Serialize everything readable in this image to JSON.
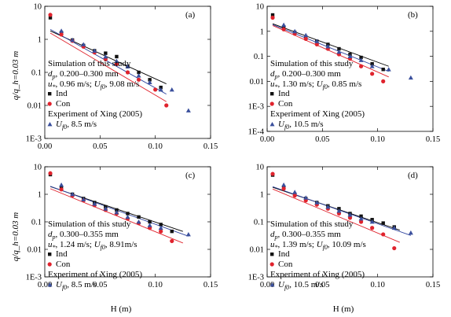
{
  "figure": {
    "ylabel": "q/q_h=0.03 m",
    "xlabel": "H (m)"
  },
  "colors": {
    "ind": "#111111",
    "con": "#e0232d",
    "xing": "#3a4f9c",
    "fit_ind": "#000000",
    "fit_con": "#e0232d",
    "fit_xing": "#2a3f9c"
  },
  "chart_data": [
    {
      "type": "scatter",
      "panel": "(a)",
      "yscale": "log",
      "xlim": [
        0,
        0.15
      ],
      "ylim": [
        0.001,
        10
      ],
      "x_ticks": [
        "0.00",
        "0.05",
        "0.10",
        "0.15"
      ],
      "y_ticks": [
        "10",
        "1",
        "0.1",
        "0.01",
        "1E-3"
      ],
      "annotation": {
        "title": "Simulation of this study",
        "dp": "d_p, 0.200–0.300 mm",
        "params": "u_*, 0.96 m/s; U_f0, 9.08 m/s",
        "legend_ind": "Ind",
        "legend_con": "Con",
        "exp_title": "Experiment of Xing (2005)",
        "exp_params": "U_f0, 8.5 m/s"
      },
      "series": [
        {
          "name": "Ind",
          "x": [
            0.005,
            0.015,
            0.025,
            0.035,
            0.045,
            0.055,
            0.065,
            0.075,
            0.085,
            0.095,
            0.105
          ],
          "y": [
            4.5,
            1.6,
            0.95,
            0.65,
            0.45,
            0.38,
            0.3,
            0.15,
            0.1,
            0.06,
            0.035
          ]
        },
        {
          "name": "Con",
          "x": [
            0.005,
            0.015,
            0.025,
            0.035,
            0.045,
            0.055,
            0.065,
            0.075,
            0.085,
            0.1,
            0.11
          ],
          "y": [
            5.5,
            1.4,
            0.9,
            0.6,
            0.4,
            0.25,
            0.18,
            0.1,
            0.06,
            0.03,
            0.01
          ]
        },
        {
          "name": "Xing",
          "x": [
            0.015,
            0.025,
            0.035,
            0.045,
            0.055,
            0.065,
            0.075,
            0.085,
            0.095,
            0.105,
            0.115,
            0.13
          ],
          "y": [
            1.8,
            0.95,
            0.7,
            0.45,
            0.3,
            0.22,
            0.15,
            0.08,
            0.05,
            0.03,
            0.03,
            0.007
          ]
        }
      ],
      "fits": [
        {
          "series": "Ind",
          "x": [
            0.005,
            0.11
          ],
          "y": [
            1.8,
            0.045
          ]
        },
        {
          "series": "Con",
          "x": [
            0.005,
            0.11
          ],
          "y": [
            1.55,
            0.013
          ]
        },
        {
          "series": "Xing",
          "x": [
            0.005,
            0.11
          ],
          "y": [
            2.0,
            0.022
          ]
        }
      ]
    },
    {
      "type": "scatter",
      "panel": "(b)",
      "yscale": "log",
      "xlim": [
        0,
        0.15
      ],
      "ylim": [
        0.0001,
        10
      ],
      "x_ticks": [
        "0.00",
        "0.05",
        "0.10",
        "0.15"
      ],
      "y_ticks": [
        "10",
        "1",
        "0.1",
        "0.01",
        "1E-3",
        "1E-4"
      ],
      "annotation": {
        "title": "Simulation of this study",
        "dp": "d_p, 0.200–0.300 mm",
        "params": "u_*, 1.30 m/s; U_f0, 0.85 m/s",
        "legend_ind": "Ind",
        "legend_con": "Con",
        "exp_title": "Experiment of Xing (2005)",
        "exp_params": "U_f0, 10.5 m/s"
      },
      "series": [
        {
          "name": "Ind",
          "x": [
            0.005,
            0.015,
            0.025,
            0.035,
            0.045,
            0.055,
            0.065,
            0.075,
            0.085,
            0.095,
            0.105
          ],
          "y": [
            4.5,
            1.5,
            0.9,
            0.6,
            0.4,
            0.3,
            0.2,
            0.12,
            0.09,
            0.05,
            0.03
          ]
        },
        {
          "name": "Con",
          "x": [
            0.005,
            0.015,
            0.025,
            0.035,
            0.045,
            0.055,
            0.065,
            0.075,
            0.085,
            0.095,
            0.105
          ],
          "y": [
            3.5,
            1.2,
            0.8,
            0.5,
            0.3,
            0.2,
            0.12,
            0.08,
            0.04,
            0.02,
            0.01
          ]
        },
        {
          "name": "Xing",
          "x": [
            0.015,
            0.025,
            0.035,
            0.045,
            0.055,
            0.065,
            0.075,
            0.085,
            0.095,
            0.11,
            0.13
          ],
          "y": [
            1.8,
            1.0,
            0.7,
            0.4,
            0.25,
            0.15,
            0.1,
            0.07,
            0.04,
            0.03,
            0.014
          ]
        }
      ],
      "fits": [
        {
          "series": "Ind",
          "x": [
            0.005,
            0.11
          ],
          "y": [
            2.0,
            0.04
          ]
        },
        {
          "series": "Con",
          "x": [
            0.005,
            0.11
          ],
          "y": [
            1.7,
            0.015
          ]
        },
        {
          "series": "Xing",
          "x": [
            0.005,
            0.11
          ],
          "y": [
            1.85,
            0.025
          ]
        }
      ]
    },
    {
      "type": "scatter",
      "panel": "(c)",
      "yscale": "log",
      "xlim": [
        0,
        0.15
      ],
      "ylim": [
        0.001,
        10
      ],
      "x_ticks": [
        "0.00",
        "0.05",
        "0.10",
        "0.15"
      ],
      "y_ticks": [
        "10",
        "1",
        "0.1",
        "0.01",
        "1E-3"
      ],
      "annotation": {
        "title": "Simulation of this study",
        "dp": "d_p, 0.300–0.355 mm",
        "params": "u_*, 1.24 m/s; U_f0, 8.91m/s",
        "legend_ind": "Ind",
        "legend_con": "Con",
        "exp_title": "Experiment of Xing (2005)",
        "exp_params": "U_f0, 8.5 m/s"
      },
      "series": [
        {
          "name": "Ind",
          "x": [
            0.005,
            0.015,
            0.025,
            0.035,
            0.045,
            0.055,
            0.065,
            0.075,
            0.085,
            0.095,
            0.105,
            0.115
          ],
          "y": [
            5.2,
            1.7,
            1.0,
            0.7,
            0.5,
            0.35,
            0.27,
            0.2,
            0.15,
            0.1,
            0.08,
            0.045
          ]
        },
        {
          "name": "Con",
          "x": [
            0.005,
            0.015,
            0.025,
            0.035,
            0.045,
            0.055,
            0.065,
            0.075,
            0.085,
            0.095,
            0.105,
            0.115
          ],
          "y": [
            5.8,
            1.5,
            0.9,
            0.6,
            0.4,
            0.27,
            0.2,
            0.13,
            0.09,
            0.06,
            0.045,
            0.02
          ]
        },
        {
          "name": "Xing",
          "x": [
            0.015,
            0.025,
            0.035,
            0.045,
            0.055,
            0.065,
            0.075,
            0.085,
            0.095,
            0.105,
            0.13
          ],
          "y": [
            2.2,
            1.0,
            0.65,
            0.45,
            0.3,
            0.22,
            0.15,
            0.1,
            0.075,
            0.06,
            0.035
          ]
        }
      ],
      "fits": [
        {
          "series": "Ind",
          "x": [
            0.005,
            0.125
          ],
          "y": [
            1.9,
            0.045
          ]
        },
        {
          "series": "Con",
          "x": [
            0.005,
            0.125
          ],
          "y": [
            1.6,
            0.017
          ]
        },
        {
          "series": "Xing",
          "x": [
            0.005,
            0.13
          ],
          "y": [
            1.95,
            0.03
          ]
        }
      ]
    },
    {
      "type": "scatter",
      "panel": "(d)",
      "yscale": "log",
      "xlim": [
        0,
        0.15
      ],
      "ylim": [
        0.001,
        10
      ],
      "x_ticks": [
        "0.00",
        "0.05",
        "0.10",
        "0.15"
      ],
      "y_ticks": [
        "10",
        "1",
        "0.1",
        "0.01",
        "1E-3"
      ],
      "annotation": {
        "title": "Simulation of this study",
        "dp": "d_p, 0.300–0.355 mm",
        "params": "u_*, 1.39 m/s; U_f0, 10.09 m/s",
        "legend_ind": "Ind",
        "legend_con": "Con",
        "exp_title": "Experiment of Xing (2005)",
        "exp_params": "U_f0, 10.5 m/s"
      },
      "series": [
        {
          "name": "Ind",
          "x": [
            0.005,
            0.015,
            0.025,
            0.035,
            0.045,
            0.055,
            0.065,
            0.075,
            0.085,
            0.095,
            0.105,
            0.115
          ],
          "y": [
            5.0,
            1.8,
            1.0,
            0.7,
            0.5,
            0.38,
            0.3,
            0.2,
            0.16,
            0.12,
            0.09,
            0.065
          ]
        },
        {
          "name": "Con",
          "x": [
            0.005,
            0.015,
            0.025,
            0.035,
            0.045,
            0.055,
            0.065,
            0.075,
            0.085,
            0.095,
            0.105,
            0.115
          ],
          "y": [
            5.5,
            1.6,
            0.9,
            0.6,
            0.42,
            0.3,
            0.2,
            0.14,
            0.1,
            0.06,
            0.035,
            0.011
          ]
        },
        {
          "name": "Xing",
          "x": [
            0.015,
            0.025,
            0.035,
            0.045,
            0.055,
            0.065,
            0.075,
            0.085,
            0.095,
            0.115,
            0.13
          ],
          "y": [
            2.2,
            1.2,
            0.75,
            0.5,
            0.35,
            0.25,
            0.18,
            0.13,
            0.1,
            0.06,
            0.04
          ]
        }
      ],
      "fits": [
        {
          "series": "Ind",
          "x": [
            0.005,
            0.12
          ],
          "y": [
            1.8,
            0.05
          ]
        },
        {
          "series": "Con",
          "x": [
            0.005,
            0.12
          ],
          "y": [
            1.55,
            0.018
          ]
        },
        {
          "series": "Xing",
          "x": [
            0.005,
            0.13
          ],
          "y": [
            1.9,
            0.032
          ]
        }
      ]
    }
  ]
}
